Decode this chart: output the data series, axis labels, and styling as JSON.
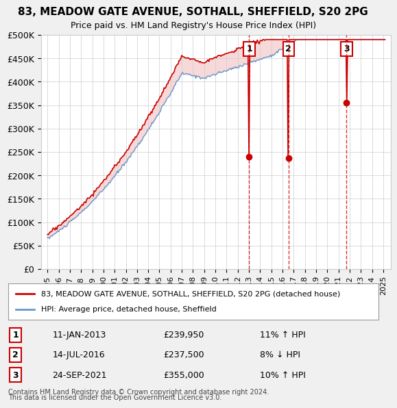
{
  "title": "83, MEADOW GATE AVENUE, SOTHALL, SHEFFIELD, S20 2PG",
  "subtitle": "Price paid vs. HM Land Registry's House Price Index (HPI)",
  "ylabel": "",
  "ylim": [
    0,
    500000
  ],
  "yticks": [
    0,
    50000,
    100000,
    150000,
    200000,
    250000,
    300000,
    350000,
    400000,
    450000,
    500000
  ],
  "ytick_labels": [
    "£0",
    "£50K",
    "£100K",
    "£150K",
    "£200K",
    "£250K",
    "£300K",
    "£350K",
    "£400K",
    "£450K",
    "£500K"
  ],
  "sale_dates": [
    "2013-01-11",
    "2016-07-14",
    "2021-09-24"
  ],
  "sale_prices": [
    239950,
    237500,
    355000
  ],
  "sale_labels": [
    "1",
    "2",
    "3"
  ],
  "sale_info": [
    {
      "num": "1",
      "date": "11-JAN-2013",
      "price": "£239,950",
      "hpi": "11% ↑ HPI"
    },
    {
      "num": "2",
      "date": "14-JUL-2016",
      "price": "£237,500",
      "hpi": "8% ↓ HPI"
    },
    {
      "num": "3",
      "date": "24-SEP-2021",
      "price": "£355,000",
      "hpi": "10% ↑ HPI"
    }
  ],
  "red_color": "#cc0000",
  "blue_color": "#6699cc",
  "vline_color": "#cc0000",
  "bg_color": "#f0f0f0",
  "plot_bg": "#ffffff",
  "grid_color": "#cccccc",
  "legend_label_red": "83, MEADOW GATE AVENUE, SOTHALL, SHEFFIELD, S20 2PG (detached house)",
  "legend_label_blue": "HPI: Average price, detached house, Sheffield",
  "footer1": "Contains HM Land Registry data © Crown copyright and database right 2024.",
  "footer2": "This data is licensed under the Open Government Licence v3.0."
}
